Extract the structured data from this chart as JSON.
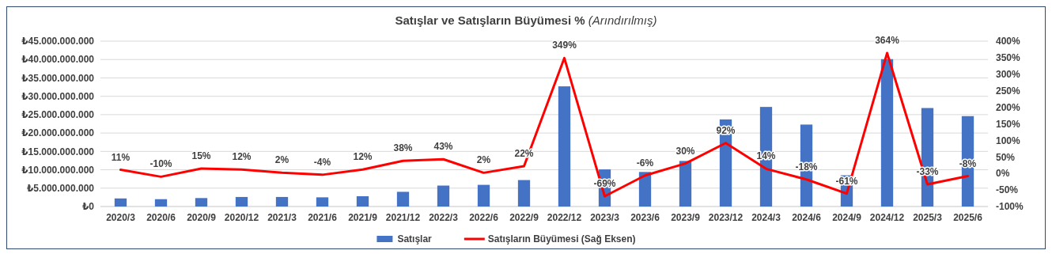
{
  "chart_data": {
    "type": "bar",
    "title": "Satışlar ve Satışların Büyümesi % (Arındırılmış)",
    "categories": [
      "2020/3",
      "2020/6",
      "2020/9",
      "2020/12",
      "2021/3",
      "2021/6",
      "2021/9",
      "2021/12",
      "2022/3",
      "2022/6",
      "2022/9",
      "2022/12",
      "2023/3",
      "2023/6",
      "2023/9",
      "2023/12",
      "2024/3",
      "2024/6",
      "2024/9",
      "2024/12",
      "2025/3",
      "2025/6"
    ],
    "series": [
      {
        "name": "Satışlar",
        "color": "#4472c4",
        "values": [
          2200000000,
          2000000000,
          2300000000,
          2600000000,
          2600000000,
          2500000000,
          2800000000,
          4000000000,
          5700000000,
          5900000000,
          7200000000,
          32700000000,
          10100000000,
          9400000000,
          12400000000,
          23700000000,
          27100000000,
          22300000000,
          8500000000,
          40100000000,
          26800000000,
          24600000000
        ]
      },
      {
        "name": "Satışların Büyümesi (Sağ Eksen)",
        "type": "line",
        "axis": "y2",
        "color": "#ff0000",
        "values": [
          11,
          -10,
          15,
          12,
          2,
          -4,
          12,
          38,
          43,
          2,
          22,
          349,
          -69,
          -6,
          30,
          92,
          14,
          -18,
          -61,
          364,
          -33,
          -8
        ],
        "value_labels": [
          "11%",
          "-10%",
          "15%",
          "12%",
          "2%",
          "-4%",
          "12%",
          "38%",
          "43%",
          "2%",
          "22%",
          "349%",
          "-69%",
          "-6%",
          "30%",
          "92%",
          "14%",
          "-18%",
          "-61%",
          "364%",
          "-33%",
          "-8%"
        ]
      }
    ],
    "ylim": [
      0,
      45000000000
    ],
    "yticks": [
      {
        "value": 0,
        "label": "₺0"
      },
      {
        "value": 5000000000,
        "label": "₺5.000.000.000"
      },
      {
        "value": 10000000000,
        "label": "₺10.000.000.000"
      },
      {
        "value": 15000000000,
        "label": "₺15.000.000.000"
      },
      {
        "value": 20000000000,
        "label": "₺20.000.000.000"
      },
      {
        "value": 25000000000,
        "label": "₺25.000.000.000"
      },
      {
        "value": 30000000000,
        "label": "₺30.000.000.000"
      },
      {
        "value": 35000000000,
        "label": "₺35.000.000.000"
      },
      {
        "value": 40000000000,
        "label": "₺40.000.000.000"
      },
      {
        "value": 45000000000,
        "label": "₺45.000.000.000"
      }
    ],
    "y2lim": [
      -100,
      400
    ],
    "y2ticks": [
      {
        "value": -100,
        "label": "-100%"
      },
      {
        "value": -50,
        "label": "-50%"
      },
      {
        "value": 0,
        "label": "0%"
      },
      {
        "value": 50,
        "label": "50%"
      },
      {
        "value": 100,
        "label": "100%"
      },
      {
        "value": 150,
        "label": "150%"
      },
      {
        "value": 200,
        "label": "200%"
      },
      {
        "value": 250,
        "label": "250%"
      },
      {
        "value": 300,
        "label": "300%"
      },
      {
        "value": 350,
        "label": "350%"
      },
      {
        "value": 400,
        "label": "400%"
      }
    ],
    "grid": "y",
    "legend": "bottom",
    "marker": "none",
    "line_style": "solid"
  }
}
